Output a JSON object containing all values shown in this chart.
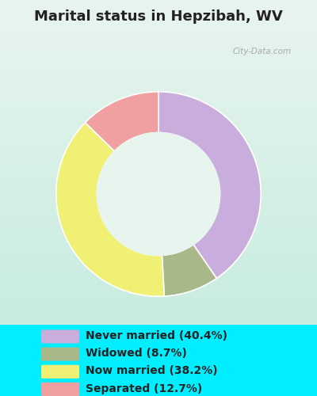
{
  "title": "Marital status in Hepzibah, WV",
  "slices": [
    {
      "label": "Never married (40.4%)",
      "value": 40.4,
      "color": "#c9aedd"
    },
    {
      "label": "Widowed (8.7%)",
      "value": 8.7,
      "color": "#a8b888"
    },
    {
      "label": "Now married (38.2%)",
      "value": 38.2,
      "color": "#f0f075"
    },
    {
      "label": "Separated (12.7%)",
      "value": 12.7,
      "color": "#f0a0a0"
    }
  ],
  "bg_color": "#00eeff",
  "chart_bg_top": "#e8f5ee",
  "chart_bg_bottom": "#c8ece0",
  "title_color": "#222222",
  "title_fontsize": 13,
  "legend_fontsize": 10,
  "watermark": "City-Data.com",
  "outer_r": 1.0,
  "inner_r": 0.6,
  "start_angle": 90
}
